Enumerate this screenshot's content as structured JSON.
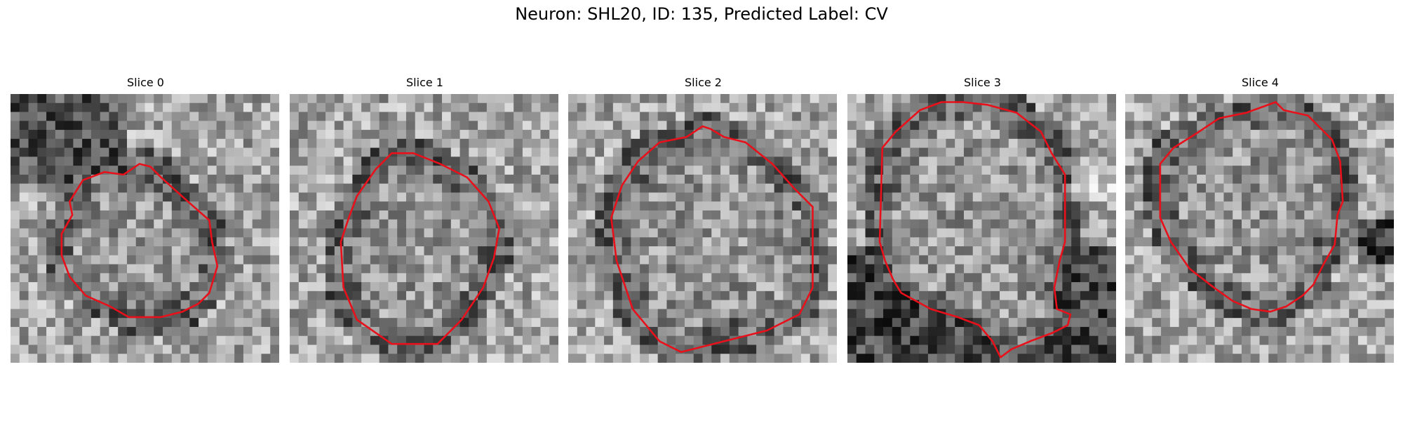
{
  "figure": {
    "title": "Neuron: SHL20, ID: 135, Predicted Label: CV"
  },
  "colors": {
    "contour": "#e8101a",
    "background": "#ffffff"
  },
  "panels": [
    {
      "label": "Slice 0",
      "contour": "irregular roughly hexagonal outline, tilted left, centered slightly above middle"
    },
    {
      "label": "Slice 1",
      "contour": "roughly circular outline filling most of the patch"
    },
    {
      "label": "Slice 2",
      "contour": "large rounded outline with small bump at top"
    },
    {
      "label": "Slice 3",
      "contour": "tall outline with notch at lower right"
    },
    {
      "label": "Slice 4",
      "contour": "rounded outline with small peak at top"
    }
  ]
}
